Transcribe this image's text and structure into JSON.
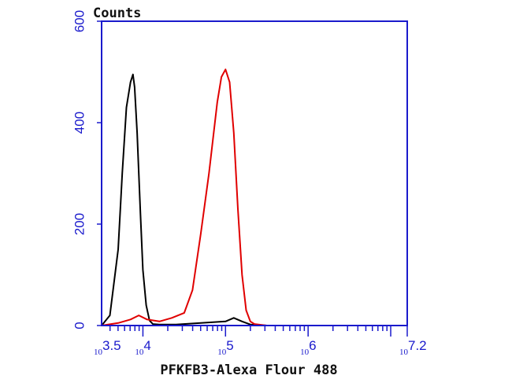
{
  "chart_data": {
    "type": "line",
    "title": "",
    "xlabel": "PFKFB3-Alexa Flour 488",
    "ylabel": "Counts",
    "x_scale": "log10",
    "xlim_log10": [
      3.5,
      7.2
    ],
    "ylim": [
      0,
      600
    ],
    "y_ticks": [
      "0",
      "200",
      "400",
      "600"
    ],
    "x_tick_labels": [
      {
        "base": "10",
        "exp": "3.5"
      },
      {
        "base": "10",
        "exp": "4"
      },
      {
        "base": "10",
        "exp": "5"
      },
      {
        "base": "10",
        "exp": "6"
      },
      {
        "base": "10",
        "exp": "7.2"
      }
    ],
    "grid": false,
    "legend": "none",
    "series": [
      {
        "color": "#000000",
        "x_log10": [
          3.5,
          3.6,
          3.7,
          3.75,
          3.8,
          3.85,
          3.88,
          3.9,
          3.93,
          3.97,
          4.0,
          4.04,
          4.08,
          4.12,
          4.2,
          4.4,
          4.7,
          5.0,
          5.1,
          5.2,
          5.3,
          5.5
        ],
        "y": [
          0,
          20,
          150,
          300,
          430,
          480,
          495,
          470,
          380,
          220,
          110,
          40,
          10,
          3,
          2,
          2,
          5,
          8,
          15,
          8,
          2,
          0
        ]
      },
      {
        "color": "#e00000",
        "x_log10": [
          3.5,
          3.7,
          3.85,
          3.95,
          4.05,
          4.2,
          4.35,
          4.5,
          4.6,
          4.7,
          4.8,
          4.9,
          4.95,
          5.0,
          5.05,
          5.1,
          5.15,
          5.2,
          5.25,
          5.3,
          5.35,
          5.5
        ],
        "y": [
          0,
          5,
          12,
          20,
          12,
          8,
          15,
          25,
          70,
          180,
          300,
          440,
          490,
          505,
          480,
          380,
          230,
          100,
          30,
          8,
          3,
          0
        ]
      }
    ]
  }
}
